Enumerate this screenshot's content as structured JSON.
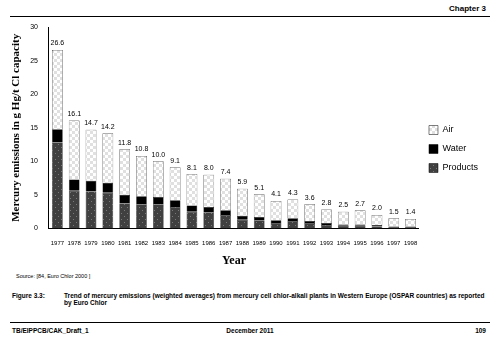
{
  "page": {
    "header": "Chapter 3",
    "source": "Source: [84, Euro Chlor 2000 ]",
    "caption_number": "Figure 3.3:",
    "caption": "Trend of mercury emissions (weighted averages) from mercury cell chlor-alkali plants in Western Europe (OSPAR countries) as reported by Euro Chlor",
    "footer_left": "TB/EIPPCB/CAK_Draft_1",
    "footer_center": "December 2011",
    "footer_right": "109"
  },
  "chart_data": {
    "type": "bar",
    "stacked": true,
    "x_label": "Year",
    "y_label": "Mercury emissions in g Hg/t Cl capacity",
    "categories": [
      "1977",
      "1978",
      "1979",
      "1980",
      "1981",
      "1982",
      "1983",
      "1984",
      "1985",
      "1986",
      "1987",
      "1988",
      "1989",
      "1990",
      "1991",
      "1992",
      "1993",
      "1994",
      "1995",
      "1996",
      "1997",
      "1998"
    ],
    "series": [
      {
        "name": "Products",
        "color": "#404040",
        "values": [
          12.8,
          5.6,
          5.5,
          5.3,
          3.7,
          3.6,
          3.6,
          3.2,
          2.5,
          2.4,
          2.0,
          1.3,
          1.2,
          0.8,
          1.1,
          0.8,
          0.5,
          0.4,
          0.4,
          0.3,
          0.2,
          0.2
        ]
      },
      {
        "name": "Water",
        "color": "#000000",
        "values": [
          2.0,
          1.7,
          1.6,
          1.5,
          1.3,
          1.2,
          1.1,
          1.0,
          0.9,
          0.8,
          0.7,
          0.6,
          0.5,
          0.4,
          0.4,
          0.3,
          0.3,
          0.2,
          0.2,
          0.2,
          0.1,
          0.1
        ]
      },
      {
        "name": "Air",
        "color": "#e0e0e0",
        "values": [
          11.8,
          8.8,
          7.6,
          7.4,
          6.8,
          6.0,
          5.3,
          4.9,
          4.7,
          4.8,
          4.7,
          4.0,
          3.4,
          2.9,
          2.8,
          2.5,
          2.0,
          1.9,
          2.1,
          1.5,
          1.2,
          1.1
        ]
      }
    ],
    "totals": [
      26.6,
      16.1,
      14.7,
      14.2,
      11.8,
      10.8,
      10.0,
      9.1,
      8.1,
      8.0,
      7.4,
      5.9,
      5.1,
      4.1,
      4.3,
      3.6,
      2.8,
      2.5,
      2.7,
      2.0,
      1.5,
      1.4
    ],
    "total_labels": [
      "26.6",
      "16.1",
      "14.7",
      "14.2",
      "11.8",
      "10.8",
      "10.0",
      "9.1",
      "8.1",
      "8.0",
      "7.4",
      "5.9",
      "5.1",
      "4.1",
      "4.3",
      "3.6",
      "2.8",
      "2.5",
      "2.7",
      "2.0",
      "1.5",
      "1.4"
    ],
    "ylim": [
      0,
      30
    ],
    "yticks": [
      0,
      5,
      10,
      15,
      20,
      25,
      30
    ],
    "grid": false,
    "legend": "right"
  }
}
